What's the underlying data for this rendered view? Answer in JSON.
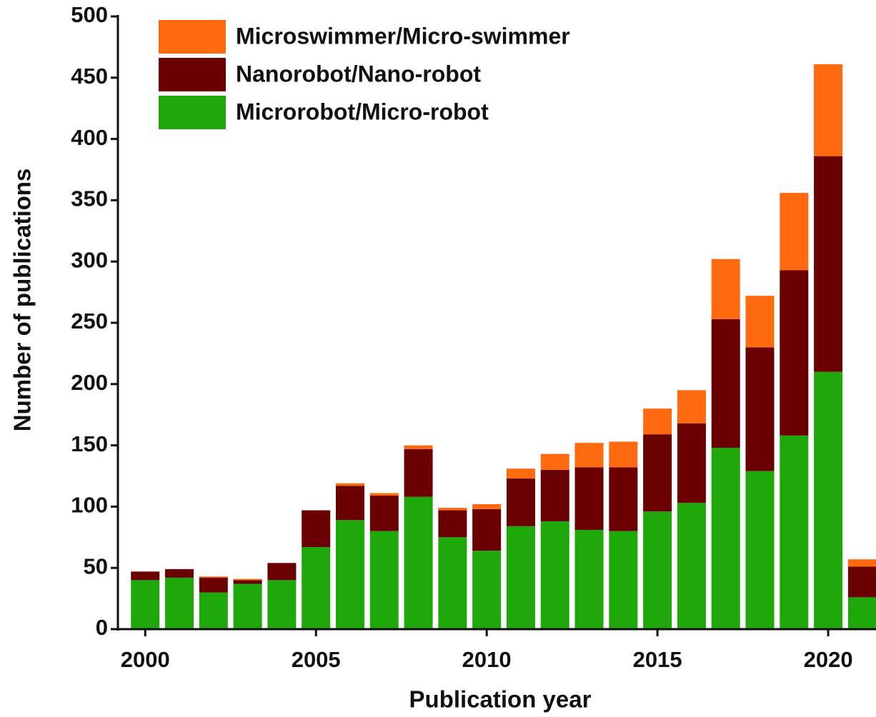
{
  "chart_data": {
    "type": "stacked_bar",
    "x": [
      2000,
      2001,
      2002,
      2003,
      2004,
      2005,
      2006,
      2007,
      2008,
      2009,
      2010,
      2011,
      2012,
      2013,
      2014,
      2015,
      2016,
      2017,
      2018,
      2019,
      2020,
      2021
    ],
    "series": [
      {
        "name": "Microrobot/Micro-robot",
        "color": "#1fa80a",
        "values": [
          40,
          42,
          30,
          37,
          40,
          67,
          89,
          80,
          108,
          75,
          64,
          84,
          88,
          81,
          80,
          96,
          103,
          148,
          129,
          158,
          210,
          26
        ]
      },
      {
        "name": "Nanorobot/Nano-robot",
        "color": "#6b0000",
        "values": [
          7,
          7,
          12,
          3,
          14,
          30,
          28,
          29,
          39,
          22,
          34,
          39,
          42,
          51,
          52,
          63,
          65,
          105,
          101,
          135,
          176,
          25
        ]
      },
      {
        "name": "Microswimmer/Micro-swimmer",
        "color": "#ff6a10",
        "values": [
          0,
          0,
          1,
          1,
          0,
          0,
          2,
          2,
          3,
          2,
          4,
          8,
          13,
          20,
          21,
          21,
          27,
          49,
          42,
          63,
          75,
          6
        ]
      }
    ],
    "x_label": "Publication year",
    "y_label": "Number of publications",
    "xlim": [
      1999.2,
      2021.4
    ],
    "xticks": [
      2000,
      2005,
      2010,
      2015,
      2020
    ],
    "ylim": [
      0,
      500
    ],
    "yticks": [
      0,
      50,
      100,
      150,
      200,
      250,
      300,
      350,
      400,
      450,
      500
    ],
    "legend": "top-left"
  }
}
